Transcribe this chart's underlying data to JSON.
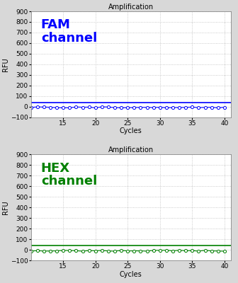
{
  "title": "Amplification",
  "xlabel": "Cycles",
  "ylabel": "RFU",
  "xlim": [
    10,
    41
  ],
  "ylim": [
    -100,
    900
  ],
  "yticks": [
    -100,
    0,
    100,
    200,
    300,
    400,
    500,
    600,
    700,
    800,
    900
  ],
  "xticks": [
    15,
    20,
    25,
    30,
    35,
    40
  ],
  "cycles_start": 10,
  "cycles_end": 40,
  "fam_label": "FAM\nchannel",
  "fam_color": "#0000ff",
  "fam_line_y": 40,
  "fam_data_y": -5,
  "hex_label": "HEX\nchannel",
  "hex_color": "#008000",
  "hex_line_y": 38,
  "hex_data_y": -8,
  "bg_color": "#ffffff",
  "fig_bg_color": "#d8d8d8",
  "grid_color": "#bbbbbb",
  "grid_style": "dotted",
  "marker": "o",
  "marker_size": 3,
  "threshold_linewidth": 1.2,
  "data_linewidth": 0.8,
  "label_fontsize": 13,
  "title_fontsize": 7,
  "axis_label_fontsize": 7,
  "tick_fontsize": 6.5
}
